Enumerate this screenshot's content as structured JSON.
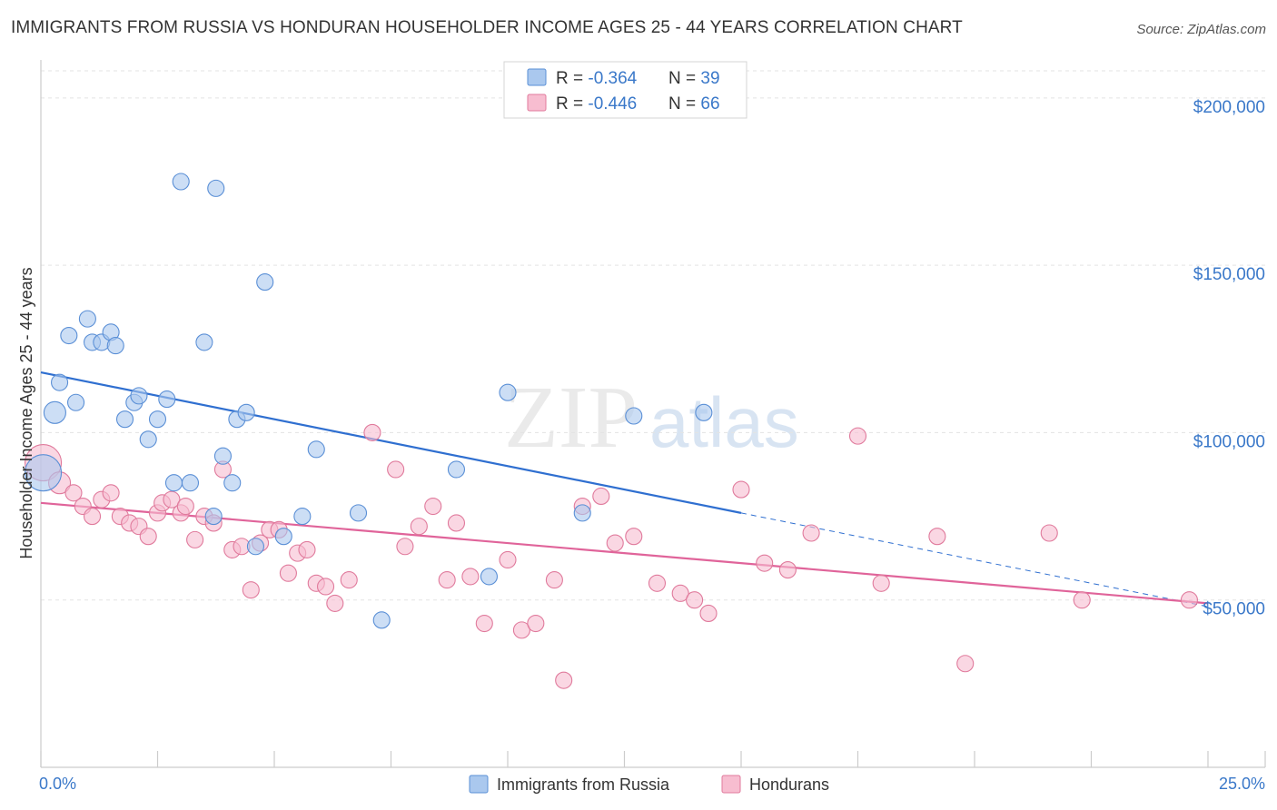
{
  "title": "IMMIGRANTS FROM RUSSIA VS HONDURAN HOUSEHOLDER INCOME AGES 25 - 44 YEARS CORRELATION CHART",
  "source": "Source: ZipAtlas.com",
  "watermark": {
    "zip": "ZIP",
    "atlas": "atlas"
  },
  "legend_box": {
    "rows": [
      {
        "r_label": "R = ",
        "r_value": "-0.364",
        "n_label": "N = ",
        "n_value": "39"
      },
      {
        "r_label": "R = ",
        "r_value": "-0.446",
        "n_label": "N = ",
        "n_value": "66"
      }
    ]
  },
  "colors": {
    "russia_fill": "#aac8ee",
    "russia_stroke": "#5a8fd6",
    "russia_line": "#2f6fd0",
    "hond_fill": "#f7bdd0",
    "hond_stroke": "#e07a9c",
    "hond_line": "#e0649a",
    "axis_text": "#3a78c9",
    "grid": "#e3e3e3"
  },
  "chart_data": {
    "type": "scatter",
    "xlabel": "",
    "ylabel": "Householder Income Ages 25 - 44 years",
    "xlim": [
      0,
      25
    ],
    "ylim": [
      0,
      210000
    ],
    "x_tick_labels": [
      "0.0%",
      "25.0%"
    ],
    "y_ticks": [
      50000,
      100000,
      150000,
      200000
    ],
    "y_tick_labels": [
      "$50,000",
      "$100,000",
      "$150,000",
      "$200,000"
    ],
    "legend": [
      "Immigrants from Russia",
      "Hondurans"
    ],
    "series": [
      {
        "name": "Immigrants from Russia",
        "r": -0.364,
        "n": 39,
        "trend": {
          "x0": 0,
          "y0": 118000,
          "x1": 15.0,
          "y1": 76000,
          "x_dash_end": 25,
          "y_dash_end": 48000
        },
        "points": [
          [
            0.05,
            88000,
            3
          ],
          [
            0.3,
            106000,
            2
          ],
          [
            0.4,
            115000,
            1
          ],
          [
            0.6,
            129000,
            1
          ],
          [
            0.75,
            109000,
            1
          ],
          [
            1.0,
            134000,
            1
          ],
          [
            1.1,
            127000,
            1
          ],
          [
            1.3,
            127000,
            1
          ],
          [
            1.5,
            130000,
            1
          ],
          [
            1.6,
            126000,
            1
          ],
          [
            1.8,
            104000,
            1
          ],
          [
            2.0,
            109000,
            1
          ],
          [
            2.1,
            111000,
            1
          ],
          [
            2.3,
            98000,
            1
          ],
          [
            2.5,
            104000,
            1
          ],
          [
            2.7,
            110000,
            1
          ],
          [
            2.85,
            85000,
            1
          ],
          [
            3.0,
            175000,
            1
          ],
          [
            3.2,
            85000,
            1
          ],
          [
            3.5,
            127000,
            1
          ],
          [
            3.7,
            75000,
            1
          ],
          [
            3.75,
            173000,
            1
          ],
          [
            3.9,
            93000,
            1
          ],
          [
            4.1,
            85000,
            1
          ],
          [
            4.2,
            104000,
            1
          ],
          [
            4.4,
            106000,
            1
          ],
          [
            4.6,
            66000,
            1
          ],
          [
            4.8,
            145000,
            1
          ],
          [
            5.2,
            69000,
            1
          ],
          [
            5.6,
            75000,
            1
          ],
          [
            5.9,
            95000,
            1
          ],
          [
            6.8,
            76000,
            1
          ],
          [
            7.3,
            44000,
            1
          ],
          [
            8.9,
            89000,
            1
          ],
          [
            9.6,
            57000,
            1
          ],
          [
            10.0,
            112000,
            1
          ],
          [
            11.6,
            76000,
            1
          ],
          [
            12.7,
            105000,
            1
          ],
          [
            14.2,
            106000,
            1
          ]
        ]
      },
      {
        "name": "Hondurans",
        "r": -0.446,
        "n": 66,
        "trend": {
          "x0": 0,
          "y0": 79000,
          "x1": 25,
          "y1": 49000
        },
        "points": [
          [
            0.05,
            91000,
            3
          ],
          [
            0.4,
            85000,
            2
          ],
          [
            0.7,
            82000,
            1
          ],
          [
            0.9,
            78000,
            1
          ],
          [
            1.1,
            75000,
            1
          ],
          [
            1.3,
            80000,
            1
          ],
          [
            1.5,
            82000,
            1
          ],
          [
            1.7,
            75000,
            1
          ],
          [
            1.9,
            73000,
            1
          ],
          [
            2.1,
            72000,
            1
          ],
          [
            2.3,
            69000,
            1
          ],
          [
            2.5,
            76000,
            1
          ],
          [
            2.6,
            79000,
            1
          ],
          [
            2.8,
            80000,
            1
          ],
          [
            3.0,
            76000,
            1
          ],
          [
            3.1,
            78000,
            1
          ],
          [
            3.3,
            68000,
            1
          ],
          [
            3.5,
            75000,
            1
          ],
          [
            3.7,
            73000,
            1
          ],
          [
            3.9,
            89000,
            1
          ],
          [
            4.1,
            65000,
            1
          ],
          [
            4.3,
            66000,
            1
          ],
          [
            4.5,
            53000,
            1
          ],
          [
            4.7,
            67000,
            1
          ],
          [
            4.9,
            71000,
            1
          ],
          [
            5.1,
            71000,
            1
          ],
          [
            5.3,
            58000,
            1
          ],
          [
            5.5,
            64000,
            1
          ],
          [
            5.7,
            65000,
            1
          ],
          [
            5.9,
            55000,
            1
          ],
          [
            6.1,
            54000,
            1
          ],
          [
            6.3,
            49000,
            1
          ],
          [
            6.6,
            56000,
            1
          ],
          [
            7.1,
            100000,
            1
          ],
          [
            7.6,
            89000,
            1
          ],
          [
            7.8,
            66000,
            1
          ],
          [
            8.1,
            72000,
            1
          ],
          [
            8.4,
            78000,
            1
          ],
          [
            8.7,
            56000,
            1
          ],
          [
            8.9,
            73000,
            1
          ],
          [
            9.2,
            57000,
            1
          ],
          [
            9.5,
            43000,
            1
          ],
          [
            10.0,
            62000,
            1
          ],
          [
            10.3,
            41000,
            1
          ],
          [
            10.6,
            43000,
            1
          ],
          [
            11.0,
            56000,
            1
          ],
          [
            11.2,
            26000,
            1
          ],
          [
            11.6,
            78000,
            1
          ],
          [
            12.0,
            81000,
            1
          ],
          [
            12.3,
            67000,
            1
          ],
          [
            12.7,
            69000,
            1
          ],
          [
            13.2,
            55000,
            1
          ],
          [
            13.7,
            52000,
            1
          ],
          [
            14.0,
            50000,
            1
          ],
          [
            14.3,
            46000,
            1
          ],
          [
            15.0,
            83000,
            1
          ],
          [
            15.5,
            61000,
            1
          ],
          [
            16.0,
            59000,
            1
          ],
          [
            16.5,
            70000,
            1
          ],
          [
            17.5,
            99000,
            1
          ],
          [
            18.0,
            55000,
            1
          ],
          [
            19.2,
            69000,
            1
          ],
          [
            19.8,
            31000,
            1
          ],
          [
            21.6,
            70000,
            1
          ],
          [
            22.3,
            50000,
            1
          ],
          [
            24.6,
            50000,
            1
          ]
        ]
      }
    ]
  }
}
